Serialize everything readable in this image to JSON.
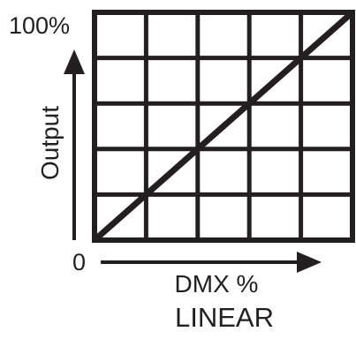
{
  "chart_data": {
    "type": "line",
    "title": "LINEAR",
    "xlabel": "DMX %",
    "ylabel": "Output",
    "y_top_label": "100%",
    "origin_label": "0",
    "x": [
      0,
      100
    ],
    "series": [
      {
        "values": [
          0,
          100
        ]
      }
    ],
    "xlim": [
      0,
      100
    ],
    "ylim": [
      0,
      100
    ],
    "grid": true,
    "grid_divisions": {
      "x": 5,
      "y": 5
    },
    "colors": {
      "ink": "#231f20",
      "background": "#ffffff"
    }
  }
}
